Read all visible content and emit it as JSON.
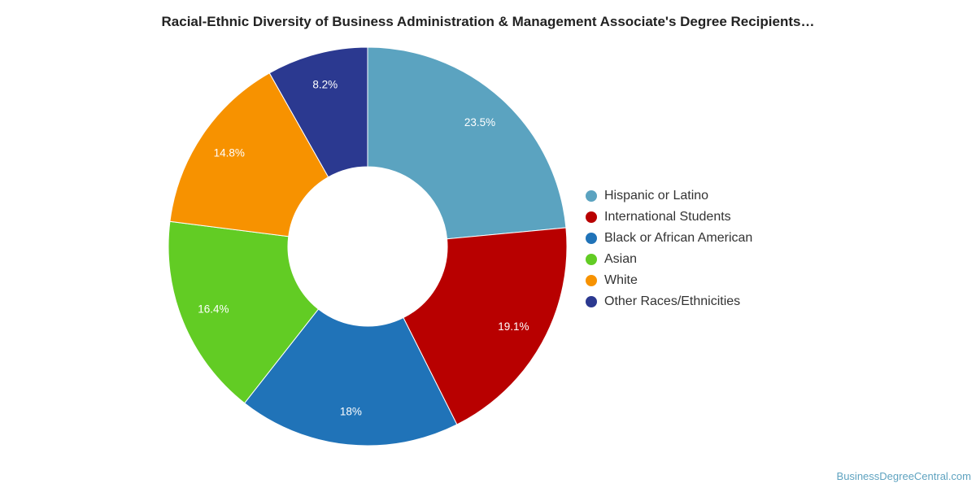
{
  "title": "Racial-Ethnic Diversity of Business Administration & Management Associate's Degree Recipients…",
  "watermark": "BusinessDegreeCentral.com",
  "chart_data": {
    "type": "pie",
    "donut": true,
    "title": "Racial-Ethnic Diversity of Business Administration & Management Associate's Degree Recipients…",
    "legend_position": "right",
    "categories": [
      "Hispanic or Latino",
      "International Students",
      "Black or African American",
      "Asian",
      "White",
      "Other Races/Ethnicities"
    ],
    "values": [
      23.5,
      19.1,
      18,
      16.4,
      14.8,
      8.2
    ],
    "labels": [
      "23.5%",
      "19.1%",
      "18%",
      "16.4%",
      "14.8%",
      "8.2%"
    ],
    "colors": [
      "#5ba3c0",
      "#b80000",
      "#2073b8",
      "#62cc24",
      "#f79200",
      "#2b3990"
    ]
  }
}
